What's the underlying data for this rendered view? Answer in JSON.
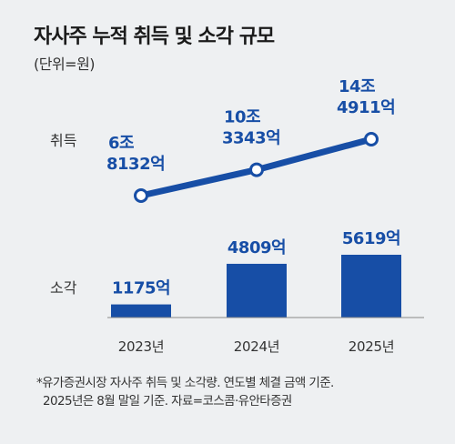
{
  "title": "자사주 누적 취득 및 소각 규모",
  "subtitle": "(단위=원)",
  "colors": {
    "line": "#174ea6",
    "bar": "#174ea6",
    "value_text": "#174ea6",
    "label_text": "#333333",
    "baseline": "#888888"
  },
  "chart_data": {
    "type": "line+bar",
    "categories": [
      "2023년",
      "2024년",
      "2025년"
    ],
    "series": [
      {
        "name": "취득",
        "type": "line",
        "values": [
          68132,
          103343,
          144911
        ],
        "labels": [
          [
            "6조",
            "8132억"
          ],
          [
            "10조",
            "3343억"
          ],
          [
            "14조",
            "4911억"
          ]
        ]
      },
      {
        "name": "소각",
        "type": "bar",
        "values": [
          1175,
          4809,
          5619
        ],
        "labels": [
          "1175억",
          "4809억",
          "5619억"
        ]
      }
    ],
    "unit": "억 원"
  },
  "notes": [
    "*유가증권시장 자사주 취득 및 소각량. 연도별 체결 금액 기준.",
    "2025년은 8월 말일 기준. 자료=코스콤·유안타증권"
  ]
}
